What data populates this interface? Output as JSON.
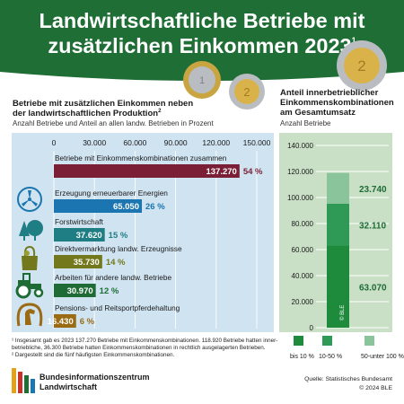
{
  "header": {
    "title_line1": "Landwirtschaftliche Betriebe mit",
    "title_line2": "zusätzlichen Einkommen 2023",
    "title_footnote_mark": "1",
    "background": "#1f6e35"
  },
  "left_chart_header": {
    "title_line1": "Betriebe mit zusätzlichen Einkommen neben",
    "title_line2": "der landwirtschaftlichen Produktion",
    "title_footnote_mark": "2",
    "subtitle": "Anzahl Betriebe und Anteil an allen landw. Betrieben in Prozent"
  },
  "right_chart_header": {
    "title_line1": "Anteil innerbetrieblicher",
    "title_line2": "Einkommenskombinationen",
    "title_line3": "am Gesamtumsatz",
    "subtitle": "Anzahl Betriebe"
  },
  "chart_data": [
    {
      "type": "bar",
      "orientation": "horizontal",
      "xlim": [
        0,
        150000
      ],
      "x_ticks": [
        "0",
        "30.000",
        "60.000",
        "90.000",
        "120.000",
        "150.000"
      ],
      "x_tick_values": [
        0,
        30000,
        60000,
        90000,
        120000,
        150000
      ],
      "grid": true,
      "categories": [
        "Betriebe mit Einkommenskombinationen zusammen",
        "Erzeugung erneuerbarer Energien",
        "Forstwirtschaft",
        "Direktvermarktung landw. Erzeugnisse",
        "Arbeiten für andere landw. Betriebe",
        "Pensions- und Reitsportpferdehaltung"
      ],
      "values": [
        137270,
        65050,
        37620,
        35730,
        30970,
        16430
      ],
      "value_labels": [
        "137.270",
        "65.050",
        "37.620",
        "35.730",
        "30.970",
        "16.430"
      ],
      "percent_labels": [
        "54 %",
        "26 %",
        "15 %",
        "14 %",
        "12 %",
        "6 %"
      ],
      "bar_colors": [
        "#7a1f35",
        "#1a75b0",
        "#1f7d84",
        "#74781d",
        "#1e6b35",
        "#9b6b14"
      ],
      "icons": [
        "",
        "wind-turbine-icon",
        "trees-icon",
        "produce-bag-icon",
        "tractor-icon",
        "horse-icon"
      ]
    },
    {
      "type": "bar",
      "orientation": "vertical-stacked",
      "ylim": [
        0,
        140000
      ],
      "y_ticks": [
        "0",
        "20.000",
        "40.000",
        "60.000",
        "80.000",
        "100.000",
        "120.000",
        "140.000"
      ],
      "y_tick_values": [
        0,
        20000,
        40000,
        60000,
        80000,
        100000,
        120000,
        140000
      ],
      "grid": true,
      "series": [
        {
          "name": "bis 10 %",
          "value": 63070,
          "label": "63.070",
          "color": "#1e8a3c"
        },
        {
          "name": "10-50 %",
          "value": 32110,
          "label": "32.110",
          "color": "#2f9a55"
        },
        {
          "name": "50-unter 100 %",
          "value": 23740,
          "label": "23.740",
          "color": "#8ac49a"
        }
      ],
      "watermark": "© BLE"
    }
  ],
  "footnotes": [
    "¹ Insgesamt gab es 2023 137.270 Betriebe mit Einkommenskombinationen. 118.920 Betriebe hatten inner-",
    "  betriebliche, 36.300 Betriebe hatten Einkommenskombinationen in rechtlich ausgelagerten Betrieben.",
    "² Dargestellt sind die fünf häufigsten Einkommenskombinationen."
  ],
  "footer": {
    "org_line1": "Bundesinformationszentrum",
    "org_line2": "Landwirtschaft",
    "source_line1": "Quelle: Statistisches Bundesamt",
    "source_line2": "© 2024 BLE"
  },
  "colors": {
    "header_green": "#1f6e35",
    "left_panel_bg": "#cfe3f1",
    "right_panel_bg": "#c9e0c6",
    "coin_gold": "#d9b24a",
    "coin_silver": "#b8bcc0"
  }
}
